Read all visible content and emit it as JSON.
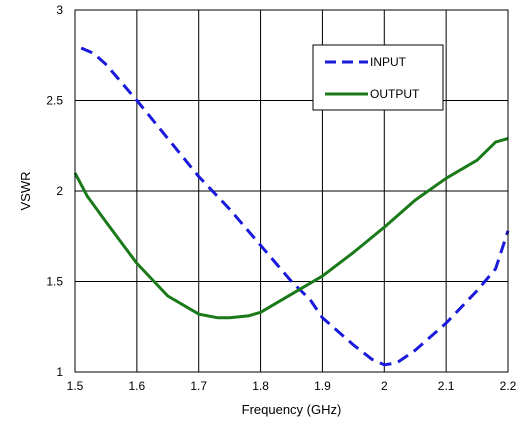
{
  "chart_data": {
    "type": "line",
    "xlabel": "Frequency (GHz)",
    "ylabel": "VSWR",
    "xlim": [
      1.5,
      2.2
    ],
    "ylim": [
      1,
      3
    ],
    "xticks": [
      1.5,
      1.6,
      1.7,
      1.8,
      1.9,
      2.0,
      2.1,
      2.2
    ],
    "xtick_labels": [
      "1.5",
      "1.6",
      "1.7",
      "1.8",
      "1.9",
      "2",
      "2.1",
      "2.2"
    ],
    "yticks": [
      1,
      1.5,
      2,
      2.5,
      3
    ],
    "ytick_labels": [
      "1",
      "1.5",
      "2",
      "2.5",
      "3"
    ],
    "grid": true,
    "legend_position": "top-right",
    "series": [
      {
        "name": "INPUT",
        "color": "#1a1adc",
        "style": "dashed",
        "x": [
          1.51,
          1.53,
          1.55,
          1.6,
          1.65,
          1.7,
          1.75,
          1.8,
          1.85,
          1.88,
          1.9,
          1.95,
          1.98,
          2.0,
          2.02,
          2.05,
          2.1,
          2.15,
          2.18,
          2.2
        ],
        "y": [
          2.79,
          2.76,
          2.7,
          2.5,
          2.29,
          2.08,
          1.9,
          1.7,
          1.5,
          1.4,
          1.3,
          1.15,
          1.07,
          1.04,
          1.05,
          1.12,
          1.27,
          1.45,
          1.57,
          1.78
        ]
      },
      {
        "name": "OUTPUT",
        "color": "#1a7a1a",
        "style": "solid",
        "x": [
          1.5,
          1.52,
          1.55,
          1.6,
          1.65,
          1.7,
          1.73,
          1.75,
          1.78,
          1.8,
          1.85,
          1.9,
          1.95,
          2.0,
          2.05,
          2.1,
          2.15,
          2.18,
          2.2
        ],
        "y": [
          2.1,
          1.97,
          1.83,
          1.6,
          1.42,
          1.32,
          1.3,
          1.3,
          1.31,
          1.33,
          1.43,
          1.53,
          1.66,
          1.8,
          1.95,
          2.07,
          2.17,
          2.27,
          2.29
        ]
      }
    ]
  }
}
